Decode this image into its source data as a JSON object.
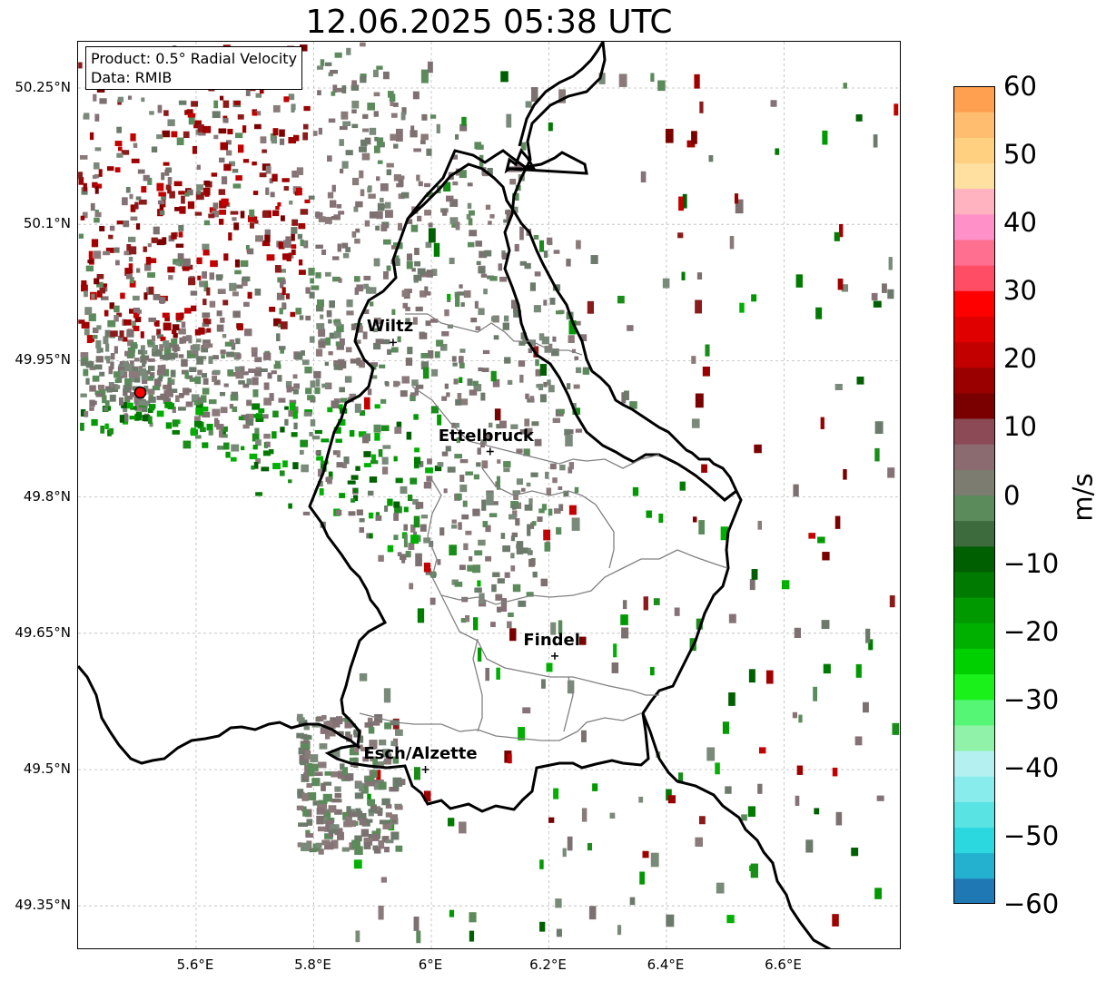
{
  "title": "12.06.2025 05:38 UTC",
  "info": {
    "product": "Product: 0.5° Radial Velocity",
    "data": "Data: RMIB"
  },
  "lat_labels": [
    "50.25°N",
    "50.1°N",
    "49.95°N",
    "49.8°N",
    "49.65°N",
    "49.5°N",
    "49.35°N"
  ],
  "lon_labels": [
    "5.6°E",
    "5.8°E",
    "6°E",
    "6.2°E",
    "6.4°E",
    "6.6°E"
  ],
  "cities": [
    {
      "name": "Wiltz",
      "lon": 5.935,
      "lat": 49.97
    },
    {
      "name": "Ettelbruck",
      "lon": 6.1,
      "lat": 49.85
    },
    {
      "name": "Findel",
      "lon": 6.21,
      "lat": 49.625
    },
    {
      "name": "Esch/Alzette",
      "lon": 5.99,
      "lat": 49.5
    }
  ],
  "radar_site": {
    "lon": 5.505,
    "lat": 49.915
  },
  "colorbar": {
    "unit": "m/s",
    "ticks": [
      "60",
      "50",
      "40",
      "30",
      "20",
      "10",
      "0",
      "−10",
      "−20",
      "−30",
      "−40",
      "−50",
      "−60"
    ],
    "min": -60,
    "max": 60,
    "colors": [
      "#1f77b4",
      "#24b1d0",
      "#2bd8e0",
      "#5ae3e3",
      "#89ecec",
      "#b5f0f0",
      "#8ff2a8",
      "#55f575",
      "#1af01a",
      "#00d000",
      "#00b000",
      "#009900",
      "#007a00",
      "#005f00",
      "#3e6b3e",
      "#5b8a5b",
      "#7c7c70",
      "#8b6a70",
      "#8b4a55",
      "#7a0000",
      "#9b0000",
      "#c20000",
      "#e00000",
      "#ff0000",
      "#ff4d65",
      "#ff7090",
      "#ff90c8",
      "#ffb3c0",
      "#ffe0a0",
      "#ffd080",
      "#ffbd70",
      "#ffa050"
    ]
  }
}
